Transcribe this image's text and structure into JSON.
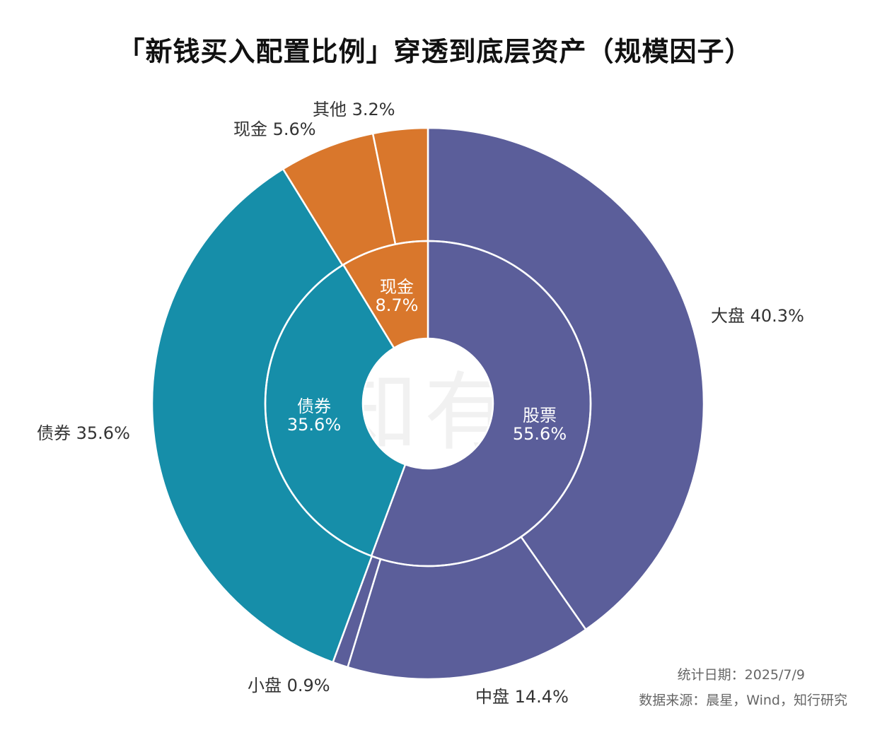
{
  "title": "「新钱买入配置比例」穿透到底层资产（规模因子）",
  "chart_data": {
    "type": "pie",
    "subtype": "nested-donut",
    "inner": [
      {
        "name": "股票",
        "value": 55.6,
        "label": "55.6%",
        "color": "#5b5e9a"
      },
      {
        "name": "债券",
        "value": 35.6,
        "label": "35.6%",
        "color": "#168ea9"
      },
      {
        "name": "现金",
        "value": 8.7,
        "label": "8.7%",
        "color": "#d9772c"
      }
    ],
    "outer": [
      {
        "name": "大盘",
        "value": 40.3,
        "label": "40.3%",
        "color": "#5b5e9a"
      },
      {
        "name": "中盘",
        "value": 14.4,
        "label": "14.4%",
        "color": "#5b5e9a"
      },
      {
        "name": "小盘",
        "value": 0.9,
        "label": "0.9%",
        "color": "#5b5e9a"
      },
      {
        "name": "债券",
        "value": 35.6,
        "label": "35.6%",
        "color": "#168ea9"
      },
      {
        "name": "现金",
        "value": 5.6,
        "label": "5.6%",
        "color": "#d9772c"
      },
      {
        "name": "其他",
        "value": 3.2,
        "label": "3.2%",
        "color": "#d9772c"
      }
    ]
  },
  "watermark": "有知有行",
  "footer": {
    "date": "统计日期：2025/7/9",
    "source": "数据来源：晨星，Wind，知行研究"
  }
}
